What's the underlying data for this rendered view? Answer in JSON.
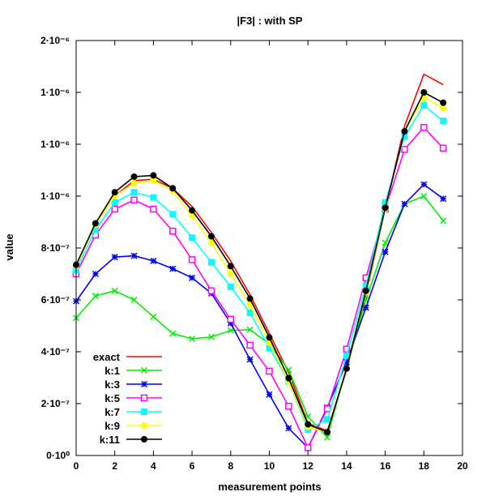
{
  "chart_data": {
    "type": "line",
    "title": "|F3| : with SP",
    "xlabel": "measurement points",
    "ylabel": "value",
    "xlim": [
      0,
      20
    ],
    "ylim": [
      0,
      1.6e-06
    ],
    "x_ticks": [
      0,
      2,
      4,
      6,
      8,
      10,
      12,
      14,
      16,
      18,
      20
    ],
    "x_tick_labels": [
      "0",
      "2",
      "4",
      "6",
      "8",
      "10",
      "12",
      "14",
      "16",
      "18",
      "20"
    ],
    "y_ticks": [
      0,
      2e-07,
      4e-07,
      6e-07,
      8e-07,
      1e-06,
      1.2e-06,
      1.4e-06,
      1.6e-06
    ],
    "y_tick_labels": [
      "0·10⁰",
      "2·10⁻⁷",
      "4·10⁻⁷",
      "6·10⁻⁷",
      "8·10⁻⁷",
      "1·10⁻⁶",
      "1·10⁻⁶",
      "1·10⁻⁶",
      "2·10⁻⁶"
    ],
    "legend_position": "bottom-left",
    "x": [
      0,
      1,
      2,
      3,
      4,
      5,
      6,
      7,
      8,
      9,
      10,
      11,
      12,
      13,
      14,
      15,
      16,
      17,
      18,
      19
    ],
    "series": [
      {
        "name": "exact",
        "color": "#ff0000",
        "marker": "none",
        "values": [
          7.3e-07,
          8.9e-07,
          1e-06,
          1.06e-06,
          1.065e-06,
          1.03e-06,
          9.6e-07,
          8.6e-07,
          7.5e-07,
          6.2e-07,
          4.7e-07,
          3.2e-07,
          1.25e-07,
          9.5e-08,
          3.3e-07,
          6.2e-07,
          9.5e-07,
          1.27e-06,
          1.47e-06,
          1.43e-06
        ]
      },
      {
        "name": "k:1",
        "color": "#00ee00",
        "marker": "x",
        "values": [
          5.3e-07,
          6.15e-07,
          6.35e-07,
          6e-07,
          5.35e-07,
          4.7e-07,
          4.5e-07,
          4.57e-07,
          4.82e-07,
          4.85e-07,
          4.3e-07,
          3.3e-07,
          1.5e-07,
          7e-08,
          3.4e-07,
          6e-07,
          8.2e-07,
          9.7e-07,
          1e-06,
          9.05e-07
        ]
      },
      {
        "name": "k:3",
        "color": "#0000ff",
        "marker": "star",
        "values": [
          5.95e-07,
          7e-07,
          7.65e-07,
          7.7e-07,
          7.5e-07,
          7.2e-07,
          6.85e-07,
          6.25e-07,
          5.1e-07,
          3.7e-07,
          2.35e-07,
          1.05e-07,
          3e-08,
          1.85e-07,
          3.6e-07,
          5.7e-07,
          7.85e-07,
          9.7e-07,
          1.045e-06,
          9.9e-07
        ]
      },
      {
        "name": "k:5",
        "color": "#ff00ff",
        "marker": "open-square",
        "values": [
          7e-07,
          8.5e-07,
          9.5e-07,
          9.85e-07,
          9.5e-07,
          8.65e-07,
          7.55e-07,
          6.35e-07,
          5.25e-07,
          4.25e-07,
          3.25e-07,
          1.9e-07,
          3e-08,
          1.8e-07,
          4.1e-07,
          6.85e-07,
          9.5e-07,
          1.18e-06,
          1.265e-06,
          1.185e-06
        ]
      },
      {
        "name": "k:7",
        "color": "#00ffff",
        "marker": "filled-square",
        "values": [
          7.15e-07,
          8.7e-07,
          9.75e-07,
          1.015e-06,
          9.95e-07,
          9.3e-07,
          8.4e-07,
          7.45e-07,
          6.5e-07,
          5.5e-07,
          4.15e-07,
          2.85e-07,
          1e-07,
          1.4e-07,
          3.85e-07,
          6.55e-07,
          9.75e-07,
          1.23e-06,
          1.35e-06,
          1.29e-06
        ]
      },
      {
        "name": "k:9",
        "color": "#ffff00",
        "marker": "filled-circle",
        "values": [
          7.3e-07,
          8.9e-07,
          1e-06,
          1.05e-06,
          1.06e-06,
          1.02e-06,
          9.25e-07,
          8.2e-07,
          7e-07,
          5.8e-07,
          4.35e-07,
          2.85e-07,
          1.1e-07,
          9e-08,
          3.35e-07,
          6.3e-07,
          9.5e-07,
          1.25e-06,
          1.38e-06,
          1.34e-06
        ]
      },
      {
        "name": "k:11",
        "color": "#000000",
        "marker": "filled-circle",
        "values": [
          7.35e-07,
          8.95e-07,
          1.015e-06,
          1.075e-06,
          1.08e-06,
          1.03e-06,
          9.45e-07,
          8.45e-07,
          7.3e-07,
          6.05e-07,
          4.55e-07,
          2.98e-07,
          1.2e-07,
          9e-08,
          3.35e-07,
          6.35e-07,
          9.55e-07,
          1.25e-06,
          1.4e-06,
          1.36e-06
        ]
      }
    ]
  }
}
